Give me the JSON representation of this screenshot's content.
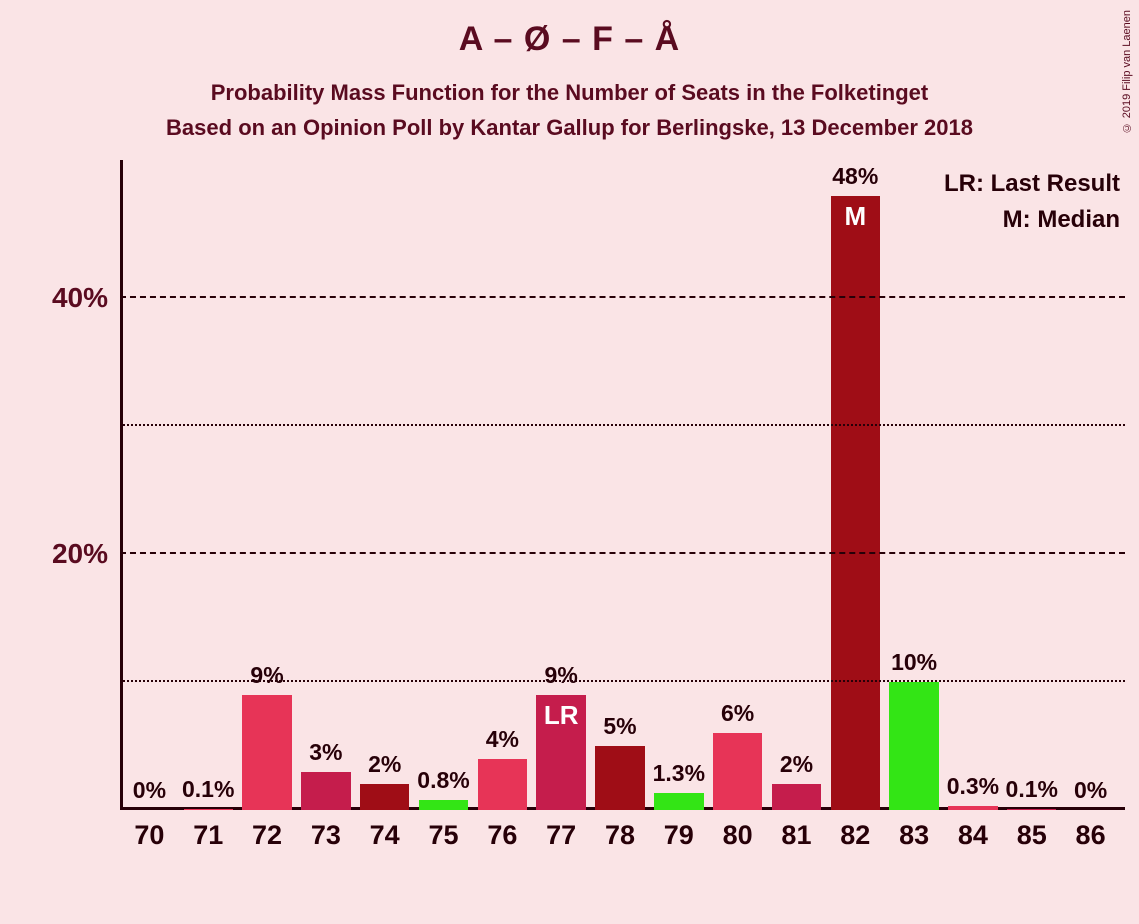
{
  "title": "A – Ø – F – Å",
  "subtitle_line1": "Probability Mass Function for the Number of Seats in the Folketinget",
  "subtitle_line2": "Based on an Opinion Poll by Kantar Gallup for Berlingske, 13 December 2018",
  "credit": "© 2019 Filip van Laenen",
  "legend": {
    "lr": "LR: Last Result",
    "m": "M: Median"
  },
  "chart": {
    "type": "bar",
    "background_color": "#fae4e6",
    "axis_color": "#270008",
    "text_color": "#5a0b20",
    "ylim": [
      0,
      50
    ],
    "y_ticks": [
      {
        "value": 10,
        "label": "",
        "style": "minor"
      },
      {
        "value": 20,
        "label": "20%",
        "style": "major"
      },
      {
        "value": 30,
        "label": "",
        "style": "minor"
      },
      {
        "value": 40,
        "label": "40%",
        "style": "major"
      }
    ],
    "bar_width_ratio": 0.84,
    "title_fontsize": 34,
    "subtitle_fontsize": 22,
    "tick_fontsize": 27,
    "value_fontsize": 23,
    "colors": {
      "pink": "#e73457",
      "magenta": "#c51d4c",
      "darkred": "#9f0d16",
      "green": "#33e515"
    },
    "categories": [
      "70",
      "71",
      "72",
      "73",
      "74",
      "75",
      "76",
      "77",
      "78",
      "79",
      "80",
      "81",
      "82",
      "83",
      "84",
      "85",
      "86"
    ],
    "bars": [
      {
        "x": "70",
        "value": 0,
        "label": "0%",
        "color": "#e73457",
        "mark": ""
      },
      {
        "x": "71",
        "value": 0.1,
        "label": "0.1%",
        "color": "#e73457",
        "mark": ""
      },
      {
        "x": "72",
        "value": 9,
        "label": "9%",
        "color": "#e73457",
        "mark": ""
      },
      {
        "x": "73",
        "value": 3,
        "label": "3%",
        "color": "#c51d4c",
        "mark": ""
      },
      {
        "x": "74",
        "value": 2,
        "label": "2%",
        "color": "#9f0d16",
        "mark": ""
      },
      {
        "x": "75",
        "value": 0.8,
        "label": "0.8%",
        "color": "#33e515",
        "mark": ""
      },
      {
        "x": "76",
        "value": 4,
        "label": "4%",
        "color": "#e73457",
        "mark": ""
      },
      {
        "x": "77",
        "value": 9,
        "label": "9%",
        "color": "#c51d4c",
        "mark": "LR"
      },
      {
        "x": "78",
        "value": 5,
        "label": "5%",
        "color": "#9f0d16",
        "mark": ""
      },
      {
        "x": "79",
        "value": 1.3,
        "label": "1.3%",
        "color": "#33e515",
        "mark": ""
      },
      {
        "x": "80",
        "value": 6,
        "label": "6%",
        "color": "#e73457",
        "mark": ""
      },
      {
        "x": "81",
        "value": 2,
        "label": "2%",
        "color": "#c51d4c",
        "mark": ""
      },
      {
        "x": "82",
        "value": 48,
        "label": "48%",
        "color": "#9f0d16",
        "mark": "M"
      },
      {
        "x": "83",
        "value": 10,
        "label": "10%",
        "color": "#33e515",
        "mark": ""
      },
      {
        "x": "84",
        "value": 0.3,
        "label": "0.3%",
        "color": "#e73457",
        "mark": ""
      },
      {
        "x": "85",
        "value": 0.1,
        "label": "0.1%",
        "color": "#c51d4c",
        "mark": ""
      },
      {
        "x": "86",
        "value": 0,
        "label": "0%",
        "color": "#9f0d16",
        "mark": ""
      }
    ]
  }
}
